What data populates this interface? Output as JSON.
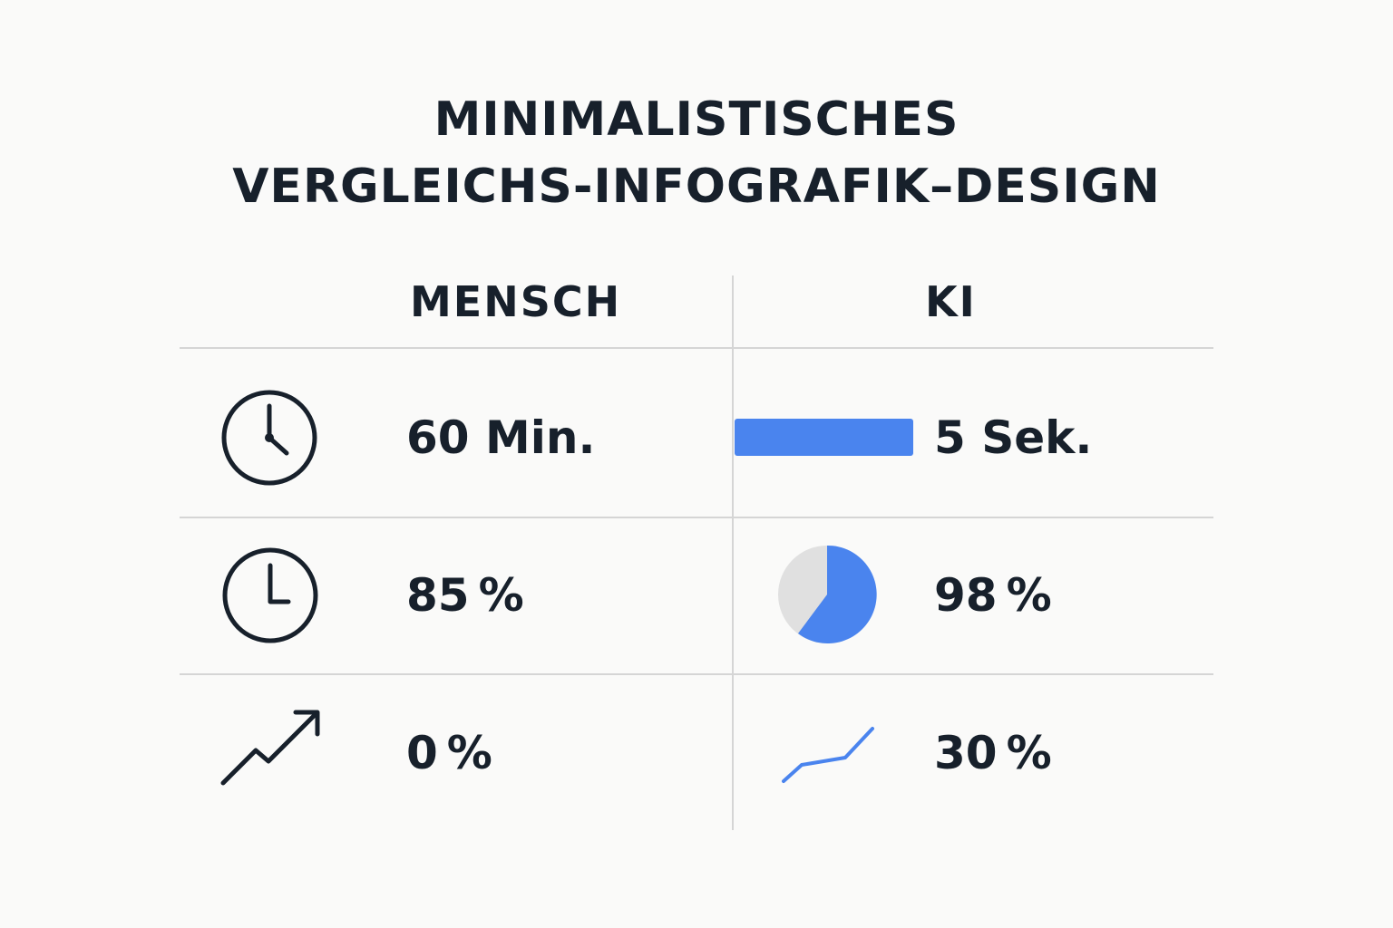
{
  "title": {
    "line1": "MINIMALISTISCHES",
    "line2": "VERGLEICHS-INFOGRAFIK–DESIGN"
  },
  "columns": {
    "left": "MENSCH",
    "right": "KI"
  },
  "rows": [
    {
      "left_icon": "clock-icon",
      "left_value": "60 Min.",
      "right_visual": "progress-bar",
      "right_value": "5 Sek."
    },
    {
      "left_icon": "clock-icon",
      "left_value": "85 %",
      "right_visual": "pie-icon",
      "right_value": "98 %"
    },
    {
      "left_icon": "trend-up-arrow-icon",
      "left_value": "0 %",
      "right_visual": "line-chart-icon",
      "right_value": "30 %"
    }
  ],
  "colors": {
    "accent": "#4a84ee",
    "text": "#17202b",
    "divider": "#d5d5d5",
    "pie_background": "#e0e0e0"
  }
}
